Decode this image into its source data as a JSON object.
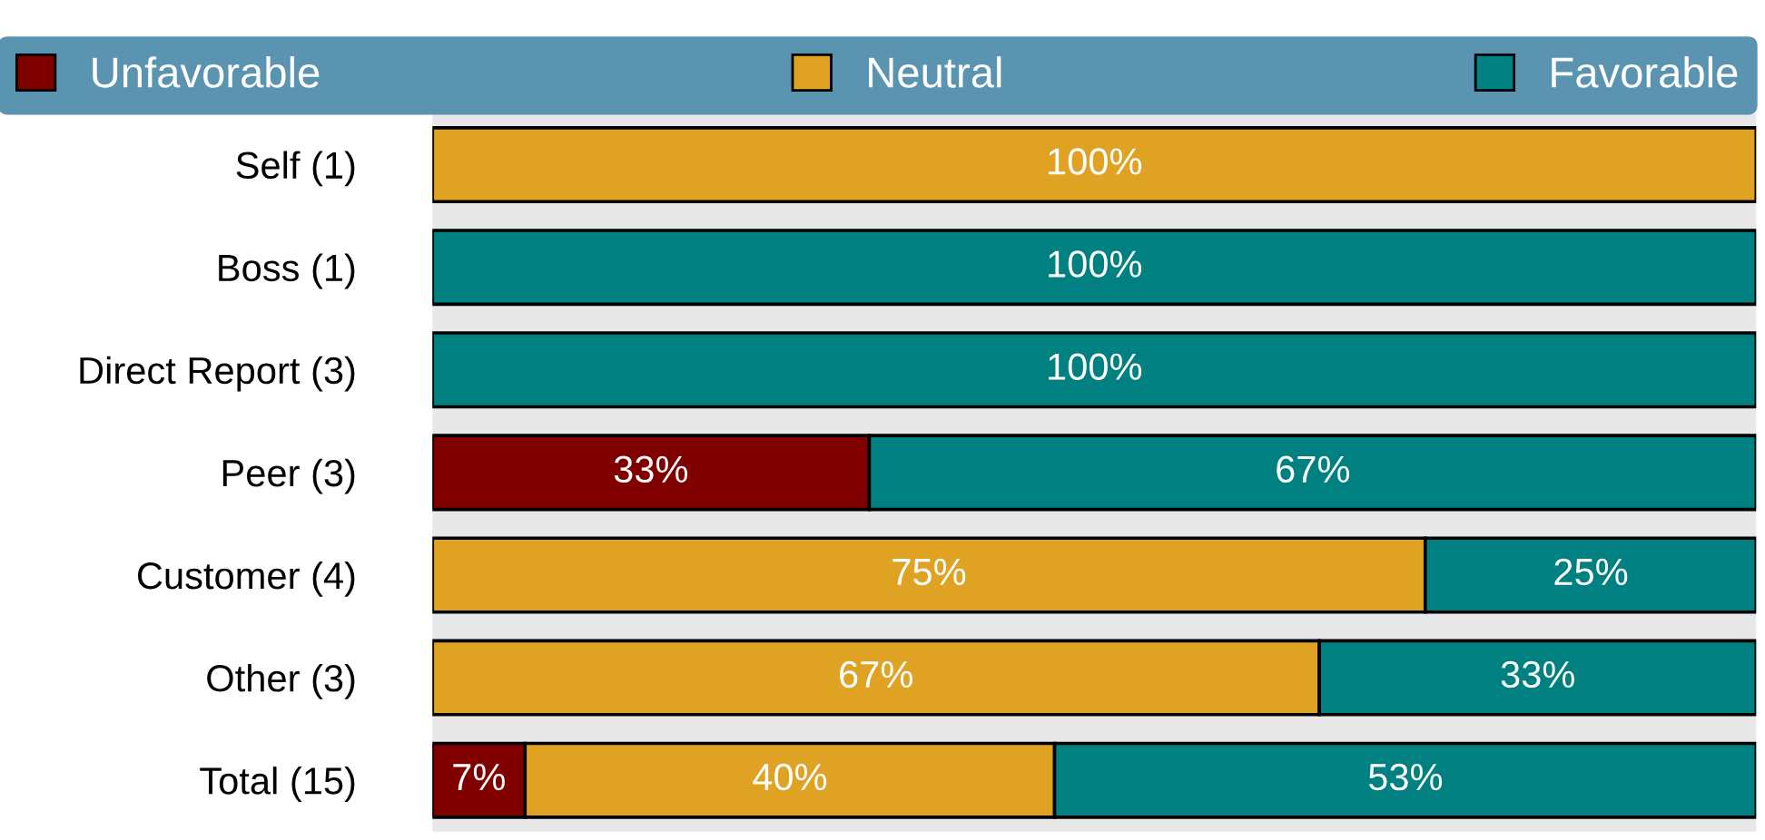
{
  "chart_data": {
    "type": "bar",
    "orientation": "horizontal",
    "stacked": true,
    "legend": "top",
    "grid": false,
    "categories": [
      "Self (1)",
      "Boss (1)",
      "Direct Report (3)",
      "Peer (3)",
      "Customer (4)",
      "Other (3)",
      "Total (15)"
    ],
    "series": [
      {
        "name": "Unfavorable",
        "color": "#800000",
        "values": [
          0,
          0,
          0,
          33,
          0,
          0,
          7
        ],
        "value_labels": [
          null,
          null,
          null,
          "33%",
          null,
          null,
          "7%"
        ]
      },
      {
        "name": "Neutral",
        "color": "#e0a222",
        "values": [
          100,
          0,
          0,
          0,
          75,
          67,
          40
        ],
        "value_labels": [
          "100%",
          null,
          null,
          null,
          "75%",
          "67%",
          "40%"
        ]
      },
      {
        "name": "Favorable",
        "color": "#008080",
        "values": [
          0,
          100,
          100,
          67,
          25,
          33,
          53
        ],
        "value_labels": [
          null,
          "100%",
          "100%",
          "67%",
          "25%",
          "33%",
          "53%"
        ]
      }
    ]
  }
}
